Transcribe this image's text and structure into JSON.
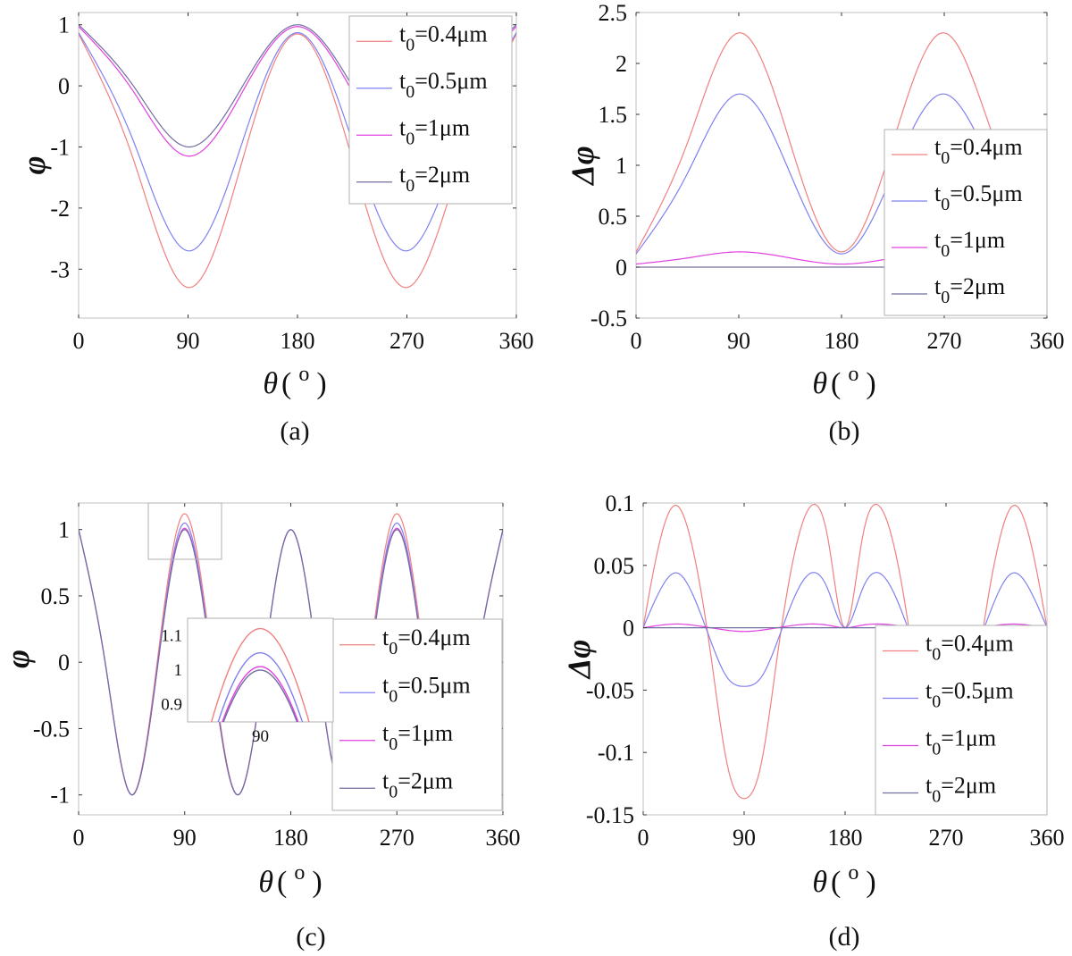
{
  "chart_data": [
    {
      "id": "a",
      "type": "line",
      "caption": "(a)",
      "xlabel": "θ ( o )",
      "ylabel": "φ",
      "xlim": [
        0,
        360
      ],
      "ylim": [
        -3.8,
        1.2
      ],
      "xticks": [
        0,
        90,
        180,
        270,
        360
      ],
      "yticks": [
        1,
        0,
        -1,
        -2,
        -3
      ],
      "ytick_labels": [
        "1",
        "0",
        "-1",
        "-2",
        "-3"
      ],
      "legend_position": "top-right",
      "x": [
        0,
        45,
        90,
        135,
        180,
        225,
        270,
        315,
        360
      ],
      "series": [
        {
          "name": "t0=0.4μm",
          "legend_label": {
            "base": "t",
            "sub": "0",
            "rest": "=0.4μm"
          },
          "color": "#f08080",
          "values": [
            0.85,
            -1.2,
            -3.3,
            -1.2,
            0.85,
            -1.2,
            -3.3,
            -1.2,
            0.85
          ]
        },
        {
          "name": "t0=0.5μm",
          "legend_label": {
            "base": "t",
            "sub": "0",
            "rest": "=0.5μm"
          },
          "color": "#8080f0",
          "values": [
            0.87,
            -0.9,
            -2.7,
            -0.9,
            0.87,
            -0.9,
            -2.7,
            -0.9,
            0.87
          ]
        },
        {
          "name": "t0=1μm",
          "legend_label": {
            "base": "t",
            "sub": "0",
            "rest": "=1μm"
          },
          "color": "#e040e0",
          "values": [
            0.97,
            -0.09,
            -1.15,
            -0.09,
            0.97,
            -0.09,
            -1.15,
            -0.09,
            0.97
          ]
        },
        {
          "name": "t0=2μm",
          "legend_label": {
            "base": "t",
            "sub": "0",
            "rest": "=2μm"
          },
          "color": "#7070a0",
          "values": [
            1.0,
            0.0,
            -1.0,
            0.0,
            1.0,
            0.0,
            -1.0,
            0.0,
            1.0
          ]
        }
      ]
    },
    {
      "id": "b",
      "type": "line",
      "caption": "(b)",
      "xlabel": "θ ( o )",
      "ylabel": "Δφ",
      "xlim": [
        0,
        360
      ],
      "ylim": [
        -0.5,
        2.5
      ],
      "xticks": [
        0,
        90,
        180,
        270,
        360
      ],
      "yticks": [
        2.5,
        2,
        1.5,
        1,
        0.5,
        0,
        -0.5
      ],
      "ytick_labels": [
        "2.5",
        "2",
        "1.5",
        "1",
        "0.5",
        "0",
        "-0.5"
      ],
      "legend_position": "right",
      "x": [
        0,
        45,
        90,
        135,
        180,
        225,
        270,
        315,
        360
      ],
      "series": [
        {
          "name": "t0=0.4μm",
          "legend_label": {
            "base": "t",
            "sub": "0",
            "rest": "=0.4μm"
          },
          "color": "#f08080",
          "values": [
            0.15,
            1.22,
            2.3,
            1.22,
            0.15,
            1.22,
            2.3,
            1.22,
            0.15
          ]
        },
        {
          "name": "t0=0.5μm",
          "legend_label": {
            "base": "t",
            "sub": "0",
            "rest": "=0.5μm"
          },
          "color": "#8080f0",
          "values": [
            0.13,
            0.92,
            1.7,
            0.92,
            0.13,
            0.92,
            1.7,
            0.92,
            0.13
          ]
        },
        {
          "name": "t0=1μm",
          "legend_label": {
            "base": "t",
            "sub": "0",
            "rest": "=1μm"
          },
          "color": "#e040e0",
          "values": [
            0.03,
            0.09,
            0.15,
            0.09,
            0.03,
            0.09,
            0.15,
            0.09,
            0.03
          ]
        },
        {
          "name": "t0=2μm",
          "legend_label": {
            "base": "t",
            "sub": "0",
            "rest": "=2μm"
          },
          "color": "#7070a0",
          "values": [
            0,
            0,
            0,
            0,
            0,
            0,
            0,
            0,
            0
          ]
        }
      ]
    },
    {
      "id": "c",
      "type": "line",
      "caption": "(c)",
      "xlabel": "θ ( o )",
      "ylabel": "φ",
      "xlim": [
        0,
        360
      ],
      "ylim": [
        -1.15,
        1.2
      ],
      "xticks": [
        0,
        90,
        180,
        270,
        360
      ],
      "yticks": [
        1,
        0.5,
        0,
        -0.5,
        -1
      ],
      "ytick_labels": [
        "1",
        "0.5",
        "0",
        "-0.5",
        "-1"
      ],
      "legend_position": "right",
      "x": [
        0,
        22.5,
        45,
        67.5,
        90,
        112.5,
        135,
        157.5,
        180,
        202.5,
        225,
        247.5,
        270,
        292.5,
        315,
        337.5,
        360
      ],
      "series": [
        {
          "name": "t0=0.4μm",
          "legend_label": {
            "base": "t",
            "sub": "0",
            "rest": "=0.4μm"
          },
          "color": "#f08080",
          "values": [
            1,
            0,
            -1,
            0.06,
            1.12,
            0.06,
            -1,
            0,
            1,
            0,
            -1,
            0.06,
            1.12,
            0.06,
            -1,
            0,
            1
          ]
        },
        {
          "name": "t0=0.5μm",
          "legend_label": {
            "base": "t",
            "sub": "0",
            "rest": "=0.5μm"
          },
          "color": "#8080f0",
          "values": [
            1,
            0,
            -1,
            0.02,
            1.05,
            0.02,
            -1,
            0,
            1,
            0,
            -1,
            0.02,
            1.05,
            0.02,
            -1,
            0,
            1
          ]
        },
        {
          "name": "t0=1μm",
          "legend_label": {
            "base": "t",
            "sub": "0",
            "rest": "=1μm"
          },
          "color": "#e040e0",
          "values": [
            1,
            0,
            -1,
            0.005,
            1.01,
            0.005,
            -1,
            0,
            1,
            0,
            -1,
            0.005,
            1.01,
            0.005,
            -1,
            0,
            1
          ]
        },
        {
          "name": "t0=2μm",
          "legend_label": {
            "base": "t",
            "sub": "0",
            "rest": "=2μm"
          },
          "color": "#7070a0",
          "values": [
            1,
            0,
            -1,
            0,
            1,
            0,
            -1,
            0,
            1,
            0,
            -1,
            0,
            1,
            0,
            -1,
            0,
            1
          ]
        }
      ],
      "inset": {
        "xlim": [
          75,
          105
        ],
        "ylim": [
          0.85,
          1.15
        ],
        "xtick_labels": [
          "90"
        ],
        "ytick_labels": [
          "1.1",
          "1",
          "0.9"
        ],
        "yticks": [
          1.1,
          1.0,
          0.9
        ]
      }
    },
    {
      "id": "d",
      "type": "line",
      "caption": "(d)",
      "xlabel": "θ ( o )",
      "ylabel": "Δφ",
      "xlim": [
        0,
        360
      ],
      "ylim": [
        -0.15,
        0.1
      ],
      "xticks": [
        0,
        90,
        180,
        270,
        360
      ],
      "yticks": [
        0.1,
        0.05,
        0,
        -0.05,
        -0.1,
        -0.15
      ],
      "ytick_labels": [
        "0.1",
        "0.05",
        "0",
        "-0.05",
        "-0.1",
        "-0.15"
      ],
      "legend_position": "right",
      "x": [
        0,
        15,
        30,
        45,
        60,
        75,
        90,
        105,
        120,
        135,
        150,
        165,
        180,
        195,
        210,
        225,
        240,
        255,
        270,
        285,
        300,
        315,
        330,
        345,
        360
      ],
      "series": [
        {
          "name": "t0=0.4μm",
          "legend_label": {
            "base": "t",
            "sub": "0",
            "rest": "=0.4μm"
          },
          "color": "#f08080",
          "values": [
            0,
            0.07,
            0.098,
            0.06,
            -0.02,
            -0.11,
            -0.137,
            -0.11,
            -0.02,
            0.06,
            0.098,
            0.07,
            0,
            0.07,
            0.098,
            0.06,
            -0.02,
            -0.11,
            -0.137,
            -0.11,
            -0.02,
            0.06,
            0.098,
            0.07,
            0
          ]
        },
        {
          "name": "t0=0.5μm",
          "legend_label": {
            "base": "t",
            "sub": "0",
            "rest": "=0.5μm"
          },
          "color": "#8080f0",
          "values": [
            0,
            0.03,
            0.044,
            0.025,
            -0.01,
            -0.04,
            -0.047,
            -0.04,
            -0.01,
            0.025,
            0.044,
            0.03,
            0,
            0.03,
            0.044,
            0.025,
            -0.01,
            -0.04,
            -0.047,
            -0.04,
            -0.01,
            0.025,
            0.044,
            0.03,
            0
          ]
        },
        {
          "name": "t0=1μm",
          "legend_label": {
            "base": "t",
            "sub": "0",
            "rest": "=1μm"
          },
          "color": "#e040e0",
          "values": [
            0,
            0.002,
            0.003,
            0.002,
            0,
            -0.002,
            -0.003,
            -0.002,
            0,
            0.002,
            0.003,
            0.002,
            0,
            0.002,
            0.003,
            0.002,
            0,
            -0.002,
            -0.003,
            -0.002,
            0,
            0.002,
            0.003,
            0.002,
            0
          ]
        },
        {
          "name": "t0=2μm",
          "legend_label": {
            "base": "t",
            "sub": "0",
            "rest": "=2μm"
          },
          "color": "#7070a0",
          "values": [
            0,
            0,
            0,
            0,
            0,
            0,
            0,
            0,
            0,
            0,
            0,
            0,
            0,
            0,
            0,
            0,
            0,
            0,
            0,
            0,
            0,
            0,
            0,
            0,
            0
          ]
        }
      ]
    }
  ]
}
